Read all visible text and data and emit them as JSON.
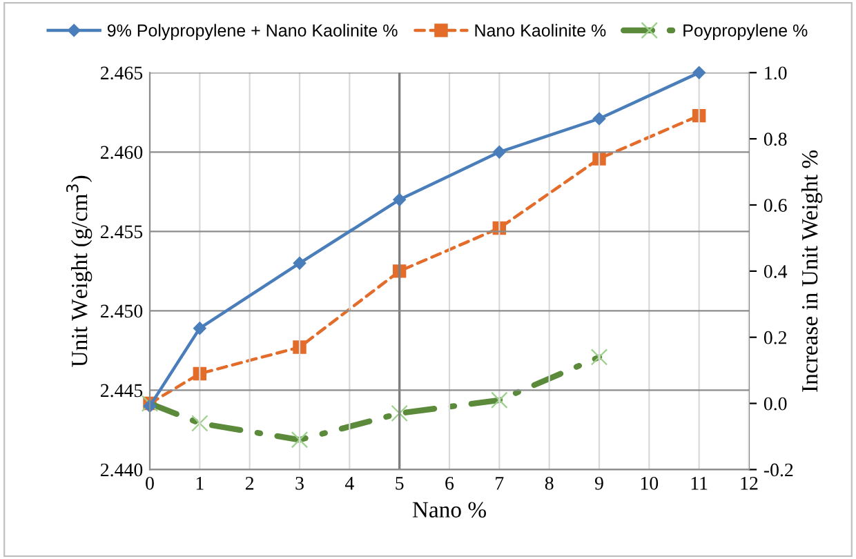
{
  "chart_data": {
    "type": "line",
    "xlabel": "Nano %",
    "ylabel": "Unit Weight (g/cm$^{3}$)",
    "y2label": "Increase in Unit Weight %",
    "xlim": [
      0,
      12
    ],
    "xticks": [
      0,
      1,
      2,
      3,
      4,
      5,
      6,
      7,
      8,
      9,
      10,
      11,
      12
    ],
    "ylim": [
      2.44,
      2.465
    ],
    "yticks": [
      {
        "value": 2.44,
        "label": "2.440"
      },
      {
        "value": 2.445,
        "label": "2.445"
      },
      {
        "value": 2.45,
        "label": "2.450"
      },
      {
        "value": 2.455,
        "label": "2.455"
      },
      {
        "value": 2.46,
        "label": "2.460"
      },
      {
        "value": 2.465,
        "label": "2.465"
      }
    ],
    "y2lim": [
      -0.2,
      1.0
    ],
    "y2ticks": [
      {
        "value": -0.2,
        "label": "-0.2"
      },
      {
        "value": 0.0,
        "label": "0.0"
      },
      {
        "value": 0.2,
        "label": "0.2"
      },
      {
        "value": 0.4,
        "label": "0.4"
      },
      {
        "value": 0.6,
        "label": "0.6"
      },
      {
        "value": 0.8,
        "label": "0.8"
      },
      {
        "value": 1.0,
        "label": "1.0"
      }
    ],
    "grid": true,
    "legend": "top",
    "ref_lines": [
      {
        "axis": "x",
        "value": 5,
        "color": "#7f7f7f"
      }
    ],
    "series": [
      {
        "name": "9% Polypropylene + Nano Kaolinite %",
        "color": "#4a7ebb",
        "x": [
          0,
          1,
          3,
          5,
          7,
          9,
          11
        ],
        "values": [
          2.444,
          2.4489,
          2.453,
          2.457,
          2.46,
          2.4621,
          2.465
        ],
        "marker": "diamond",
        "line_style": "solid"
      },
      {
        "name": "Nano Kaolinite %",
        "color": "#e46c2a",
        "axis": "y2",
        "x": [
          0,
          1,
          3,
          5,
          7,
          9,
          11
        ],
        "values": [
          0.0,
          0.09,
          0.17,
          0.4,
          0.53,
          0.74,
          0.87
        ],
        "marker": "square",
        "line_style": "dashed"
      },
      {
        "name": "Poypropylene %",
        "color": "#5a8a3a",
        "axis": "y2",
        "x": [
          0,
          1,
          3,
          5,
          7,
          9
        ],
        "values": [
          0.0,
          -0.06,
          -0.11,
          -0.03,
          0.01,
          0.14
        ],
        "marker": "cross",
        "line_style": "dashdot"
      }
    ]
  }
}
